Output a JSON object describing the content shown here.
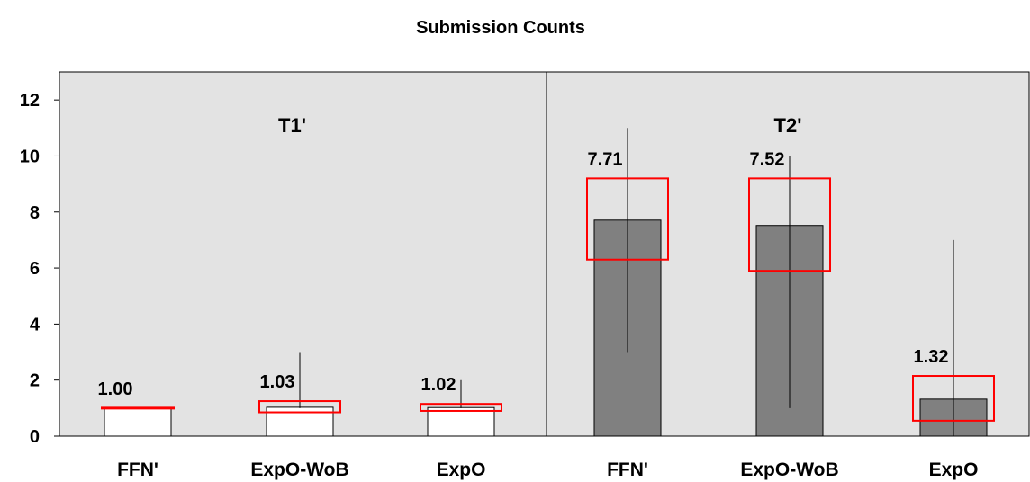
{
  "chart_data": {
    "type": "bar",
    "title": "Submission Counts",
    "xlabel": "",
    "ylabel": "",
    "ylim": [
      0,
      13
    ],
    "yticks": [
      0,
      2,
      4,
      6,
      8,
      10,
      12
    ],
    "grid": false,
    "legend": "none",
    "panels": [
      {
        "label": "T1'",
        "categories": [
          "FFN'",
          "ExpO-WoB",
          "ExpO"
        ],
        "values": [
          1.0,
          1.03,
          1.02
        ],
        "value_labels": [
          "1.00",
          "1.03",
          "1.02"
        ],
        "range_min": [
          1,
          1,
          1
        ],
        "range_max": [
          1,
          3,
          2
        ],
        "box_low": [
          1.0,
          0.85,
          0.9
        ],
        "box_high": [
          1.0,
          1.25,
          1.15
        ],
        "bar_color": "#ffffff"
      },
      {
        "label": "T2'",
        "categories": [
          "FFN'",
          "ExpO-WoB",
          "ExpO"
        ],
        "values": [
          7.71,
          7.52,
          1.32
        ],
        "value_labels": [
          "7.71",
          "7.52",
          "1.32"
        ],
        "range_min": [
          3,
          1,
          0
        ],
        "range_max": [
          11,
          10,
          7
        ],
        "box_low": [
          6.3,
          5.9,
          0.55
        ],
        "box_high": [
          9.2,
          9.2,
          2.15
        ],
        "bar_color": "#808080"
      }
    ],
    "colors": {
      "panel_background": "#e3e3e3",
      "box_outline": "#ff0000",
      "bar_outline": "#000000",
      "range_line": "#000000"
    }
  }
}
